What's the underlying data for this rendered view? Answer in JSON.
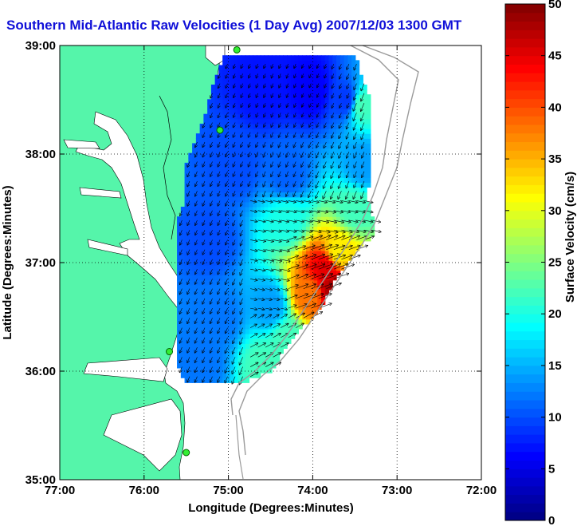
{
  "chart_data": {
    "type": "heatmap",
    "title": "Southern Mid-Atlantic Raw Velocities (1 Day Avg) 2007/12/03 1300 GMT",
    "xlabel": "Longitude (Degrees:Minutes)",
    "ylabel": "Latitude (Degrees:Minutes)",
    "xlim": [
      -77,
      -72
    ],
    "ylim": [
      35,
      39
    ],
    "x_ticks": [
      {
        "value": -77,
        "label": "77:00"
      },
      {
        "value": -76,
        "label": "76:00"
      },
      {
        "value": -75,
        "label": "75:00"
      },
      {
        "value": -74,
        "label": "74:00"
      },
      {
        "value": -73,
        "label": "73:00"
      },
      {
        "value": -72,
        "label": "72:00"
      }
    ],
    "y_ticks": [
      {
        "value": 35,
        "label": "35:00"
      },
      {
        "value": 36,
        "label": "36:00"
      },
      {
        "value": 37,
        "label": "37:00"
      },
      {
        "value": 38,
        "label": "38:00"
      },
      {
        "value": 39,
        "label": "39:00"
      }
    ],
    "grid": true,
    "colorbar": {
      "label": "Surface Velocity (cm/s)",
      "min": 0,
      "max": 50,
      "ticks": [
        0,
        5,
        10,
        15,
        20,
        25,
        30,
        35,
        40,
        45,
        50
      ]
    },
    "stations": [
      {
        "lon": -74.9,
        "lat": 38.96
      },
      {
        "lon": -75.1,
        "lat": 38.22
      },
      {
        "lon": -75.7,
        "lat": 36.18
      },
      {
        "lon": -75.5,
        "lat": 35.25
      }
    ],
    "coverage_polygon": [
      [
        -75.05,
        38.92
      ],
      [
        -73.5,
        38.92
      ],
      [
        -73.32,
        38.5
      ],
      [
        -73.3,
        38.0
      ],
      [
        -73.35,
        37.6
      ],
      [
        -73.25,
        37.3
      ],
      [
        -73.7,
        36.9
      ],
      [
        -73.9,
        36.6
      ],
      [
        -74.0,
        36.5
      ],
      [
        -74.2,
        36.35
      ],
      [
        -74.5,
        36.0
      ],
      [
        -74.9,
        35.88
      ],
      [
        -75.5,
        35.88
      ],
      [
        -75.6,
        36.05
      ],
      [
        -75.6,
        37.4
      ],
      [
        -75.5,
        37.6
      ],
      [
        -75.5,
        37.9
      ],
      [
        -75.3,
        38.3
      ],
      [
        -75.2,
        38.6
      ],
      [
        -75.1,
        38.8
      ]
    ],
    "speed_samples": [
      {
        "lon": -74.6,
        "lat": 38.6,
        "speed": 7
      },
      {
        "lon": -74.0,
        "lat": 38.6,
        "speed": 6
      },
      {
        "lon": -73.6,
        "lat": 38.5,
        "speed": 9
      },
      {
        "lon": -73.42,
        "lat": 38.45,
        "speed": 22
      },
      {
        "lon": -73.4,
        "lat": 37.9,
        "speed": 14
      },
      {
        "lon": -74.9,
        "lat": 37.9,
        "speed": 10
      },
      {
        "lon": -74.3,
        "lat": 37.8,
        "speed": 11
      },
      {
        "lon": -73.5,
        "lat": 37.5,
        "speed": 22
      },
      {
        "lon": -74.3,
        "lat": 37.4,
        "speed": 20
      },
      {
        "lon": -75.2,
        "lat": 37.2,
        "speed": 10
      },
      {
        "lon": -73.7,
        "lat": 37.1,
        "speed": 32
      },
      {
        "lon": -73.85,
        "lat": 36.95,
        "speed": 45
      },
      {
        "lon": -73.75,
        "lat": 36.75,
        "speed": 48
      },
      {
        "lon": -74.05,
        "lat": 36.7,
        "speed": 38
      },
      {
        "lon": -74.5,
        "lat": 36.6,
        "speed": 14
      },
      {
        "lon": -75.1,
        "lat": 36.5,
        "speed": 12
      },
      {
        "lon": -74.3,
        "lat": 36.3,
        "speed": 22
      },
      {
        "lon": -74.6,
        "lat": 36.05,
        "speed": 22
      },
      {
        "lon": -75.3,
        "lat": 36.1,
        "speed": 12
      }
    ]
  }
}
